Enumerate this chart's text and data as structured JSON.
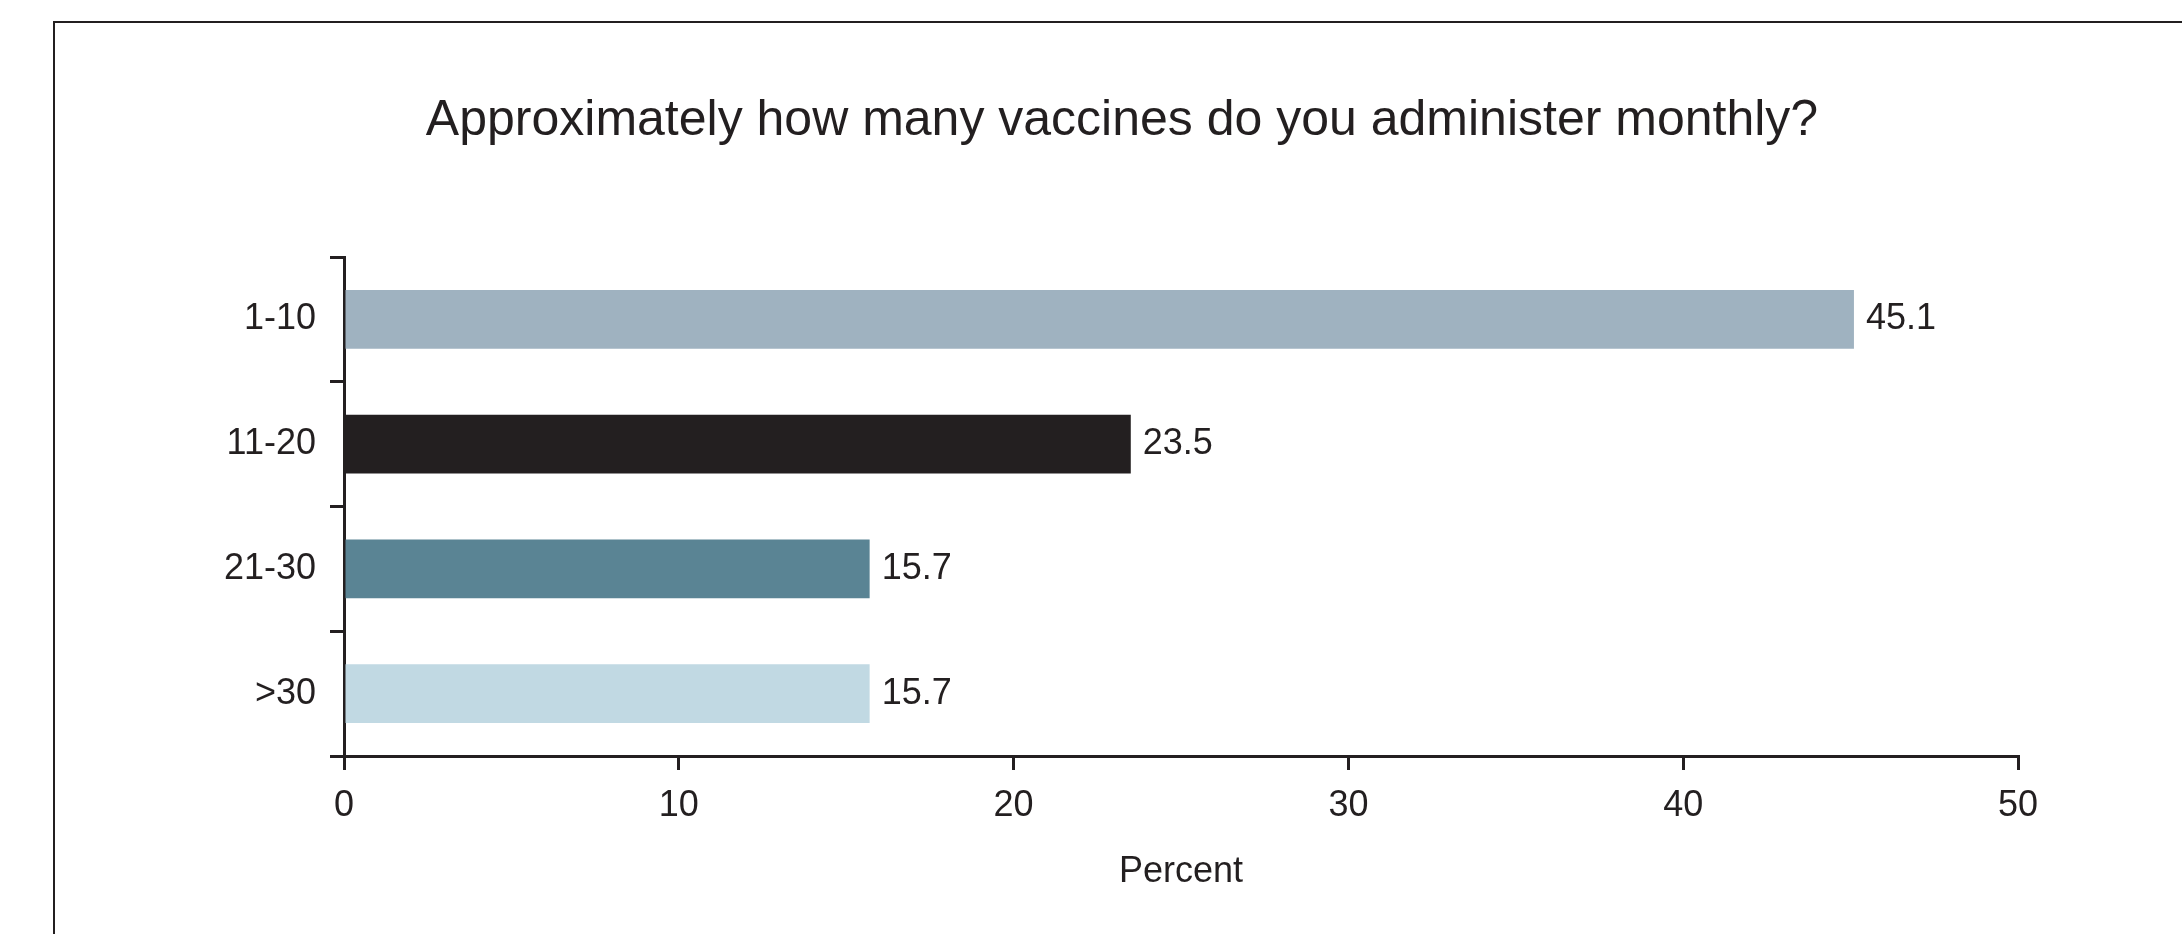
{
  "chart_data": {
    "type": "bar",
    "orientation": "horizontal",
    "title": "Approximately how many vaccines do you administer monthly?",
    "xlabel": "Percent",
    "categories": [
      "1-10",
      "11-20",
      "21-30",
      ">30"
    ],
    "values": [
      45.1,
      23.5,
      15.7,
      15.7
    ],
    "colors": [
      "#9fb2c0",
      "#231f20",
      "#5a8494",
      "#c1d9e3"
    ],
    "xlim": [
      0,
      50
    ],
    "xticks": [
      0,
      10,
      20,
      30,
      40,
      50
    ],
    "data_labels": true,
    "grid": false,
    "legend": false
  }
}
